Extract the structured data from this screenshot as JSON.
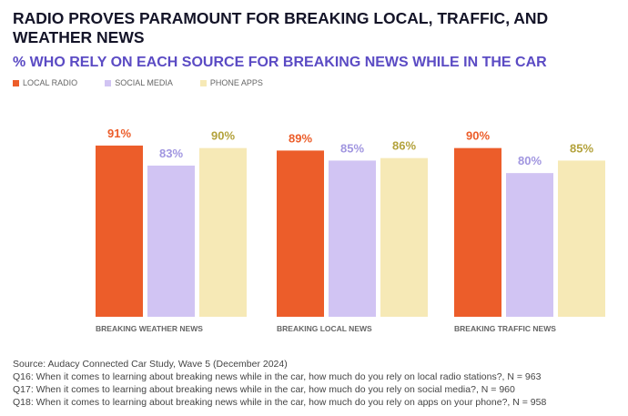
{
  "title": "RADIO PROVES PARAMOUNT FOR BREAKING LOCAL, TRAFFIC, AND WEATHER NEWS",
  "chart_data": {
    "type": "bar",
    "title": "% WHO RELY ON EACH SOURCE FOR BREAKING NEWS WHILE IN THE CAR",
    "categories": [
      "BREAKING WEATHER NEWS",
      "BREAKING LOCAL NEWS",
      "BREAKING TRAFFIC NEWS"
    ],
    "series": [
      {
        "name": "LOCAL RADIO",
        "color": "#ec5d2a",
        "label_color": "#ec5d2a",
        "values": [
          91,
          89,
          90
        ]
      },
      {
        "name": "SOCIAL MEDIA",
        "color": "#d1c4f3",
        "label_color": "#a196e0",
        "values": [
          83,
          85,
          80
        ]
      },
      {
        "name": "PHONE APPS",
        "color": "#f6e9b6",
        "label_color": "#b3a23c",
        "values": [
          90,
          86,
          85
        ]
      }
    ],
    "value_suffix": "%",
    "ylim": [
      22.6,
      100
    ],
    "legend": "top-left",
    "grid": false
  },
  "footnotes": [
    "Source: Audacy Connected Car Study, Wave 5 (December 2024)",
    "Q16: When it comes to learning about breaking news while in the car, how much do you rely on local radio stations?, N = 963",
    "Q17: When it comes to learning about breaking news while in the car, how much do you rely on social media?, N = 960",
    "Q18: When it comes to learning about breaking news while in the car, how much do you rely on apps on your phone?, N = 958"
  ]
}
